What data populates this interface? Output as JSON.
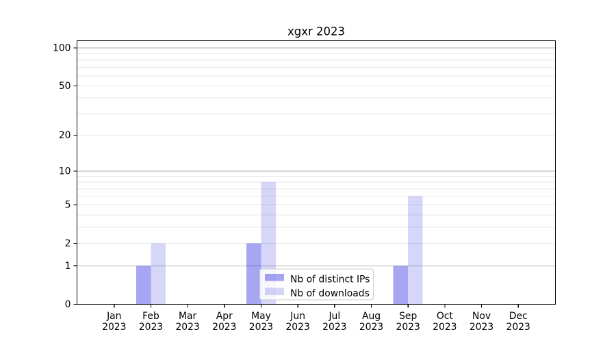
{
  "chart_data": {
    "type": "bar",
    "title": "xgxr 2023",
    "categories": [
      "Jan 2023",
      "Feb 2023",
      "Mar 2023",
      "Apr 2023",
      "May 2023",
      "Jun 2023",
      "Jul 2023",
      "Aug 2023",
      "Sep 2023",
      "Oct 2023",
      "Nov 2023",
      "Dec 2023"
    ],
    "series": [
      {
        "name": "Nb of distinct IPs",
        "color": "rgba(0,0,220,0.35)",
        "values": [
          0,
          1,
          0,
          0,
          2,
          0,
          0,
          0,
          1,
          0,
          0,
          0
        ]
      },
      {
        "name": "Nb of downloads",
        "color": "rgba(0,0,220,0.16)",
        "values": [
          0,
          2,
          0,
          0,
          8,
          0,
          0,
          0,
          6,
          0,
          0,
          0
        ]
      }
    ],
    "xlabel": "",
    "ylabel": "",
    "yscale": "log1p",
    "ylim": [
      0,
      114
    ],
    "yticks": [
      0,
      1,
      2,
      5,
      10,
      20,
      50,
      100
    ],
    "grid": {
      "major_values": [
        1,
        10,
        100
      ],
      "minor_values": [
        2,
        3,
        4,
        5,
        6,
        7,
        8,
        9,
        20,
        30,
        40,
        50,
        60,
        70,
        80,
        90
      ],
      "major_color": "#b3b3b3",
      "minor_color": "#e7e7e7"
    },
    "legend": {
      "position": "lower center",
      "entries": [
        "Nb of distinct IPs",
        "Nb of downloads"
      ]
    }
  }
}
